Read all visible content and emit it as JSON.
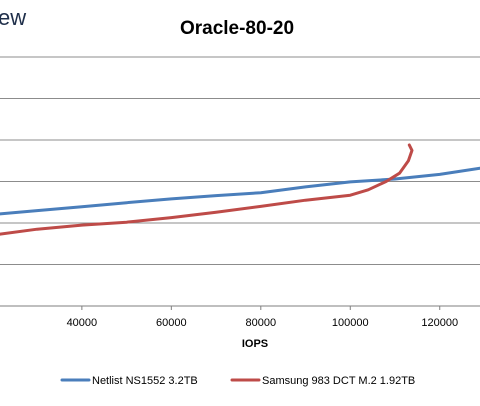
{
  "logo": {
    "text_fragment": "ew",
    "color": "#1f2f4a"
  },
  "chart_data": {
    "type": "line",
    "title": "Oracle-80-20",
    "xlabel": "IOPS",
    "ylabel": "",
    "x_tick_labels": [
      "40000",
      "60000",
      "80000",
      "100000",
      "120000"
    ],
    "x_ticks": [
      40000,
      60000,
      80000,
      100000,
      120000
    ],
    "xlim": [
      21700,
      129000
    ],
    "ylim": [
      0,
      6
    ],
    "y_gridlines": [
      1,
      2,
      3,
      4,
      5,
      6
    ],
    "grid": true,
    "legend_position": "bottom",
    "series": [
      {
        "name": "Netlist NS1552 3.2TB",
        "color": "#4a7ebb",
        "points": [
          [
            21700,
            2.22
          ],
          [
            30000,
            2.3
          ],
          [
            40000,
            2.39
          ],
          [
            50000,
            2.49
          ],
          [
            60000,
            2.58
          ],
          [
            70000,
            2.66
          ],
          [
            80000,
            2.73
          ],
          [
            90000,
            2.87
          ],
          [
            100000,
            2.99
          ],
          [
            110000,
            3.06
          ],
          [
            120000,
            3.17
          ],
          [
            129000,
            3.32
          ]
        ]
      },
      {
        "name": "Samsung 983 DCT M.2 1.92TB",
        "color": "#be4b48",
        "points": [
          [
            21700,
            1.73
          ],
          [
            30000,
            1.85
          ],
          [
            40000,
            1.95
          ],
          [
            50000,
            2.02
          ],
          [
            60000,
            2.13
          ],
          [
            70000,
            2.26
          ],
          [
            80000,
            2.4
          ],
          [
            90000,
            2.55
          ],
          [
            100000,
            2.67
          ],
          [
            104000,
            2.8
          ],
          [
            108000,
            3.0
          ],
          [
            111000,
            3.2
          ],
          [
            113000,
            3.5
          ],
          [
            113800,
            3.75
          ],
          [
            113200,
            3.88
          ]
        ]
      }
    ]
  }
}
